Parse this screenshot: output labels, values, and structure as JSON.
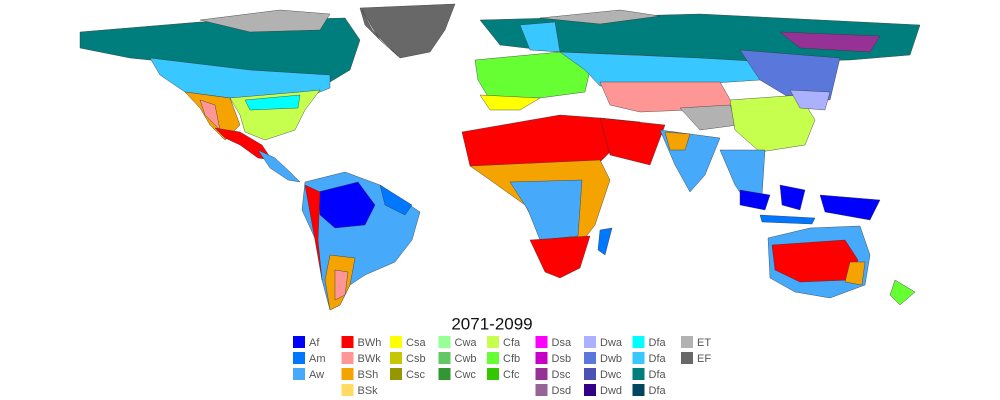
{
  "title": "2071-2099",
  "legend": {
    "columns": [
      [
        {
          "label": "Af",
          "color": "#0000fe"
        },
        {
          "label": "Am",
          "color": "#0077ff"
        },
        {
          "label": "Aw",
          "color": "#46a9fa"
        }
      ],
      [
        {
          "label": "BWh",
          "color": "#fe0000"
        },
        {
          "label": "BWk",
          "color": "#fe9695"
        },
        {
          "label": "BSh",
          "color": "#f5a301"
        },
        {
          "label": "BSk",
          "color": "#ffdb63"
        }
      ],
      [
        {
          "label": "Csa",
          "color": "#ffff00"
        },
        {
          "label": "Csb",
          "color": "#c6c700"
        },
        {
          "label": "Csc",
          "color": "#969600"
        }
      ],
      [
        {
          "label": "Cwa",
          "color": "#96ff96"
        },
        {
          "label": "Cwb",
          "color": "#63c764"
        },
        {
          "label": "Cwc",
          "color": "#329633"
        }
      ],
      [
        {
          "label": "Cfa",
          "color": "#c6ff4e"
        },
        {
          "label": "Cfb",
          "color": "#66ff33"
        },
        {
          "label": "Cfc",
          "color": "#33c701"
        }
      ],
      [
        {
          "label": "Dsa",
          "color": "#ff00fe"
        },
        {
          "label": "Dsb",
          "color": "#c600c7"
        },
        {
          "label": "Dsc",
          "color": "#963295"
        },
        {
          "label": "Dsd",
          "color": "#966495"
        }
      ],
      [
        {
          "label": "Dwa",
          "color": "#abb1ff"
        },
        {
          "label": "Dwb",
          "color": "#5a77db"
        },
        {
          "label": "Dwc",
          "color": "#4c51b5"
        },
        {
          "label": "Dwd",
          "color": "#320087"
        }
      ],
      [
        {
          "label": "Dfa",
          "color": "#00ffff"
        },
        {
          "label": "Dfa",
          "color": "#38c7ff"
        },
        {
          "label": "Dfa",
          "color": "#007e7d"
        },
        {
          "label": "Dfa",
          "color": "#00455e"
        }
      ],
      [
        {
          "label": "ET",
          "color": "#b2b2b2"
        },
        {
          "label": "EF",
          "color": "#686868"
        }
      ]
    ]
  }
}
